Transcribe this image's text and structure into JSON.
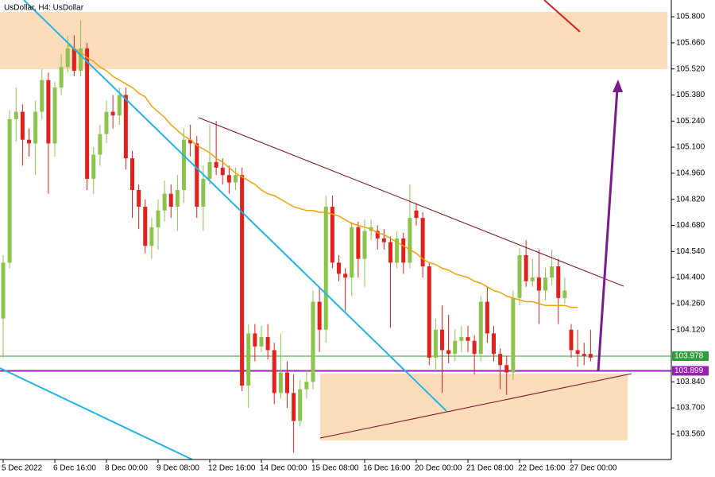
{
  "chart_data": {
    "type": "candlestick",
    "title": "UsDollar, H4:  UsDollar",
    "categories": [
      "5 Dec 2022",
      null,
      null,
      null,
      null,
      null,
      null,
      null,
      "6 Dec 16:00",
      null,
      null,
      null,
      null,
      null,
      null,
      null,
      "8 Dec 00:00",
      null,
      null,
      null,
      null,
      null,
      null,
      null,
      "9 Dec 08:00",
      null,
      null,
      null,
      null,
      null,
      null,
      null,
      "12 Dec 16:00",
      null,
      null,
      null,
      null,
      null,
      null,
      null,
      "14 Dec 00:00",
      null,
      null,
      null,
      null,
      null,
      null,
      null,
      "15 Dec 08:00",
      null,
      null,
      null,
      null,
      null,
      null,
      null,
      "16 Dec 16:00",
      null,
      null,
      null,
      null,
      null,
      null,
      null,
      "20 Dec 00:00",
      null,
      null,
      null,
      null,
      null,
      null,
      null,
      "21 Dec 08:00",
      null,
      null,
      null,
      null,
      null,
      null,
      null,
      "22 Dec 16:00",
      null,
      null,
      null,
      null,
      null,
      null,
      null,
      "27 Dec 00:00",
      null,
      null,
      null
    ],
    "open": [
      104.18,
      104.48,
      105.25,
      105.29,
      105.14,
      105.12,
      105.29,
      105.46,
      105.12,
      105.42,
      105.53,
      105.63,
      105.51,
      105.63,
      104.93,
      105.06,
      105.17,
      105.29,
      105.27,
      105.38,
      105.04,
      104.87,
      104.78,
      104.57,
      104.67,
      104.76,
      104.85,
      104.78,
      104.87,
      105.14,
      105.12,
      104.78,
      104.93,
      105.02,
      104.99,
      104.95,
      104.91,
      104.95,
      103.82,
      104.1,
      104.03,
      104.08,
      104.01,
      103.78,
      103.89,
      103.78,
      103.63,
      103.8,
      103.84,
      104.27,
      104.12,
      104.78,
      104.48,
      104.42,
      104.4,
      104.67,
      104.5,
      104.65,
      104.65,
      104.61,
      104.59,
      104.48,
      104.61,
      104.48,
      104.76,
      104.72,
      104.46,
      103.97,
      104.12,
      104.01,
      103.99,
      104.06,
      104.08,
      104.06,
      103.99,
      104.27,
      104.1,
      103.99,
      103.93,
      103.89,
      104.29,
      104.52,
      104.38,
      104.4,
      104.33,
      104.4,
      104.46,
      104.29,
      104.12,
      104.01,
      103.99,
      103.99
    ],
    "high": [
      104.52,
      105.3,
      105.42,
      105.33,
      105.2,
      105.35,
      105.52,
      105.5,
      105.45,
      105.6,
      105.7,
      105.7,
      105.78,
      105.66,
      105.1,
      105.22,
      105.35,
      105.38,
      105.42,
      105.42,
      105.08,
      104.9,
      104.82,
      104.72,
      104.82,
      104.92,
      104.9,
      104.95,
      105.2,
      105.22,
      105.16,
      105.0,
      105.22,
      105.24,
      105.04,
      105.0,
      104.99,
      104.99,
      104.15,
      104.15,
      104.14,
      104.15,
      104.05,
      104.1,
      103.95,
      103.88,
      103.85,
      103.9,
      104.33,
      104.35,
      104.84,
      104.84,
      104.52,
      104.45,
      104.7,
      104.7,
      104.71,
      104.71,
      104.68,
      104.66,
      104.62,
      104.65,
      104.64,
      104.9,
      104.8,
      104.75,
      104.48,
      104.18,
      104.25,
      104.2,
      104.12,
      104.14,
      104.14,
      104.09,
      104.3,
      104.35,
      104.14,
      104.02,
      103.98,
      104.33,
      104.56,
      104.6,
      104.5,
      104.55,
      104.45,
      104.55,
      104.5,
      104.4,
      104.15,
      104.12,
      104.05,
      104.12
    ],
    "low": [
      103.97,
      104.45,
      105.13,
      105.0,
      105.05,
      104.95,
      105.25,
      104.85,
      105.05,
      105.38,
      105.5,
      105.48,
      105.48,
      104.87,
      104.85,
      105.0,
      105.12,
      105.2,
      105.22,
      104.98,
      104.72,
      104.66,
      104.53,
      104.5,
      104.55,
      104.7,
      104.72,
      104.65,
      104.8,
      105.05,
      104.72,
      104.65,
      104.9,
      104.95,
      104.9,
      104.85,
      104.87,
      103.79,
      103.7,
      103.95,
      104.0,
      103.96,
      103.72,
      103.75,
      103.7,
      103.46,
      103.6,
      103.75,
      103.8,
      104.0,
      104.05,
      104.45,
      104.38,
      104.22,
      104.3,
      104.4,
      104.35,
      104.6,
      104.55,
      104.55,
      104.13,
      104.45,
      104.42,
      104.45,
      104.68,
      104.4,
      103.93,
      103.9,
      103.78,
      103.94,
      103.95,
      104.0,
      104.0,
      103.88,
      103.95,
      104.05,
      103.95,
      103.8,
      103.77,
      103.85,
      104.25,
      104.35,
      104.35,
      104.15,
      104.28,
      104.36,
      104.15,
      104.26,
      103.97,
      103.92,
      103.93,
      103.95
    ],
    "close": [
      104.48,
      105.25,
      105.29,
      105.14,
      105.12,
      105.29,
      105.46,
      105.12,
      105.42,
      105.53,
      105.63,
      105.51,
      105.63,
      104.93,
      105.06,
      105.17,
      105.29,
      105.27,
      105.38,
      105.04,
      104.87,
      104.78,
      104.57,
      104.67,
      104.76,
      104.85,
      104.78,
      104.87,
      105.14,
      105.12,
      104.78,
      104.93,
      105.02,
      104.99,
      104.95,
      104.91,
      104.95,
      103.82,
      104.1,
      104.03,
      104.08,
      104.01,
      103.78,
      103.89,
      103.78,
      103.63,
      103.8,
      103.84,
      104.27,
      104.12,
      104.78,
      104.48,
      104.42,
      104.4,
      104.67,
      104.5,
      104.65,
      104.67,
      104.61,
      104.59,
      104.48,
      104.61,
      104.48,
      104.72,
      104.72,
      104.46,
      103.97,
      104.12,
      104.01,
      103.99,
      104.06,
      104.08,
      104.06,
      103.99,
      104.27,
      104.1,
      103.99,
      103.93,
      103.89,
      104.29,
      104.52,
      104.38,
      104.4,
      104.33,
      104.4,
      104.46,
      104.29,
      104.33,
      104.01,
      103.99,
      103.98,
      103.97
    ],
    "up_color": "#8cc34a",
    "down_color": "#e3201b",
    "ma": {
      "color": "#f0a30a",
      "values": [
        null,
        null,
        null,
        null,
        null,
        null,
        null,
        null,
        null,
        null,
        105.647,
        105.63,
        105.61,
        105.58,
        105.56,
        105.53,
        105.51,
        105.48,
        105.46,
        105.44,
        105.42,
        105.39,
        105.37,
        105.32,
        105.29,
        105.26,
        105.22,
        105.19,
        105.16,
        105.14,
        105.11,
        105.09,
        105.07,
        105.04,
        105.02,
        104.99,
        104.96,
        104.94,
        104.92,
        104.9,
        104.87,
        104.85,
        104.84,
        104.82,
        104.8,
        104.78,
        104.77,
        104.76,
        104.76,
        104.75,
        104.75,
        104.74,
        104.73,
        104.71,
        104.69,
        104.68,
        104.67,
        104.66,
        104.64,
        104.63,
        104.61,
        104.59,
        104.57,
        104.55,
        104.53,
        104.5,
        104.48,
        104.47,
        104.45,
        104.44,
        104.42,
        104.41,
        104.4,
        104.38,
        104.37,
        104.35,
        104.33,
        104.32,
        104.3,
        104.29,
        104.28,
        104.27,
        104.27,
        104.26,
        104.25,
        104.25,
        104.25,
        104.25,
        104.24,
        104.24,
        null,
        null
      ]
    },
    "price_lines": [
      {
        "value": 103.978,
        "color": "#2e9e3a"
      },
      {
        "value": 103.899,
        "color": "#9b1fb5"
      }
    ],
    "ylim": [
      103.423,
      105.89
    ],
    "yticks": [
      {
        "value": 103.56,
        "label": "103.560"
      },
      {
        "value": 103.7,
        "label": "103.700"
      },
      {
        "value": 103.84,
        "label": "103.840"
      },
      {
        "value": 104.12,
        "label": "104.120"
      },
      {
        "value": 104.26,
        "label": "104.260"
      },
      {
        "value": 104.4,
        "label": "104.400"
      },
      {
        "value": 104.54,
        "label": "104.540"
      },
      {
        "value": 104.68,
        "label": "104.680"
      },
      {
        "value": 104.82,
        "label": "104.820"
      },
      {
        "value": 104.96,
        "label": "104.960"
      },
      {
        "value": 105.1,
        "label": "105.100"
      },
      {
        "value": 105.24,
        "label": "105.240"
      },
      {
        "value": 105.38,
        "label": "105.380"
      },
      {
        "value": 105.52,
        "label": "105.520"
      },
      {
        "value": 105.66,
        "label": "105.660"
      },
      {
        "value": 105.8,
        "label": "105.800"
      }
    ]
  }
}
